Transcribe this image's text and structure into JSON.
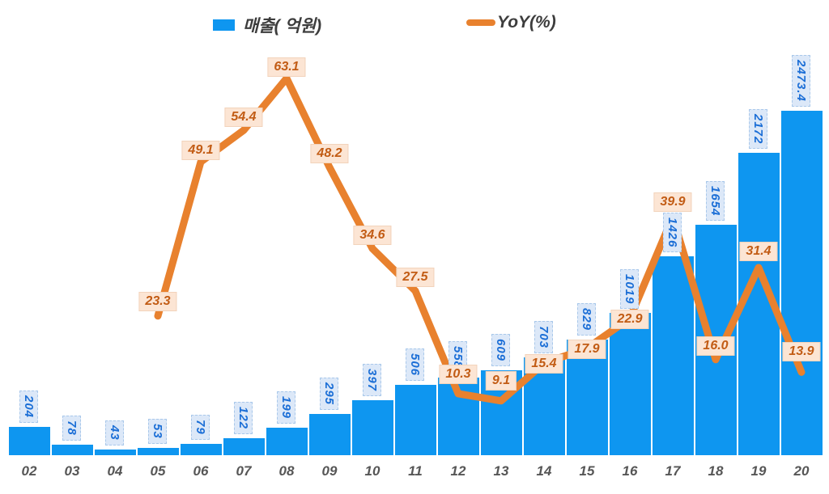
{
  "legend": {
    "items": [
      {
        "label": "매출( 억원)",
        "swatch": "bar-swatch"
      },
      {
        "label": "YoY(%)",
        "swatch": "line-swatch"
      }
    ]
  },
  "colors": {
    "bar": "#0e96f0",
    "bar_label_bg": "#dce8f8",
    "bar_label_text": "#1b6ed6",
    "line": "#e8812e",
    "yoy_label_bg": "#fce5d4",
    "yoy_label_text": "#c25c15",
    "axis_text": "#565656",
    "legend_text": "#3d3d3d"
  },
  "chart_data": {
    "type": "bar+line",
    "title": "",
    "xlabel": "",
    "ylabel": "",
    "grid": false,
    "y_axis_visible": false,
    "legend_position": "top",
    "categories": [
      "02",
      "03",
      "04",
      "05",
      "06",
      "07",
      "08",
      "09",
      "10",
      "11",
      "12",
      "13",
      "14",
      "15",
      "16",
      "17",
      "18",
      "19",
      "20"
    ],
    "series": [
      {
        "name": "매출( 억원)",
        "type": "bar",
        "values": [
          204,
          78,
          43,
          53,
          79,
          122,
          199,
          295,
          397,
          506,
          558,
          609,
          703,
          829,
          1019,
          1426,
          1654,
          2172,
          2473.4
        ],
        "labels": [
          "204",
          "78",
          "43",
          "53",
          "79",
          "122",
          "199",
          "295",
          "397",
          "506",
          "558",
          "609",
          "703",
          "829",
          "1019",
          "1426",
          "1654",
          "2172",
          "2473.4"
        ]
      },
      {
        "name": "YoY(%)",
        "type": "line",
        "values": [
          null,
          null,
          null,
          23.3,
          49.1,
          54.4,
          63.1,
          48.2,
          34.6,
          27.5,
          10.3,
          9.1,
          15.4,
          17.9,
          22.9,
          39.9,
          16.0,
          31.4,
          13.9
        ],
        "labels": [
          null,
          null,
          null,
          "23.3",
          "49.1",
          "54.4",
          "63.1",
          "48.2",
          "34.6",
          "27.5",
          "10.3",
          "9.1",
          "15.4",
          "17.9",
          "22.9",
          "39.9",
          "16.0",
          "31.4",
          "13.9"
        ],
        "label_offsets": [
          null,
          null,
          null,
          6,
          2,
          4,
          2,
          5,
          4,
          5,
          12,
          13,
          -13,
          -13,
          -13,
          6,
          5,
          8,
          13
        ]
      }
    ],
    "ylim_bar": [
      0,
      3268
    ],
    "ylim_line": [
      0,
      76.2
    ]
  }
}
